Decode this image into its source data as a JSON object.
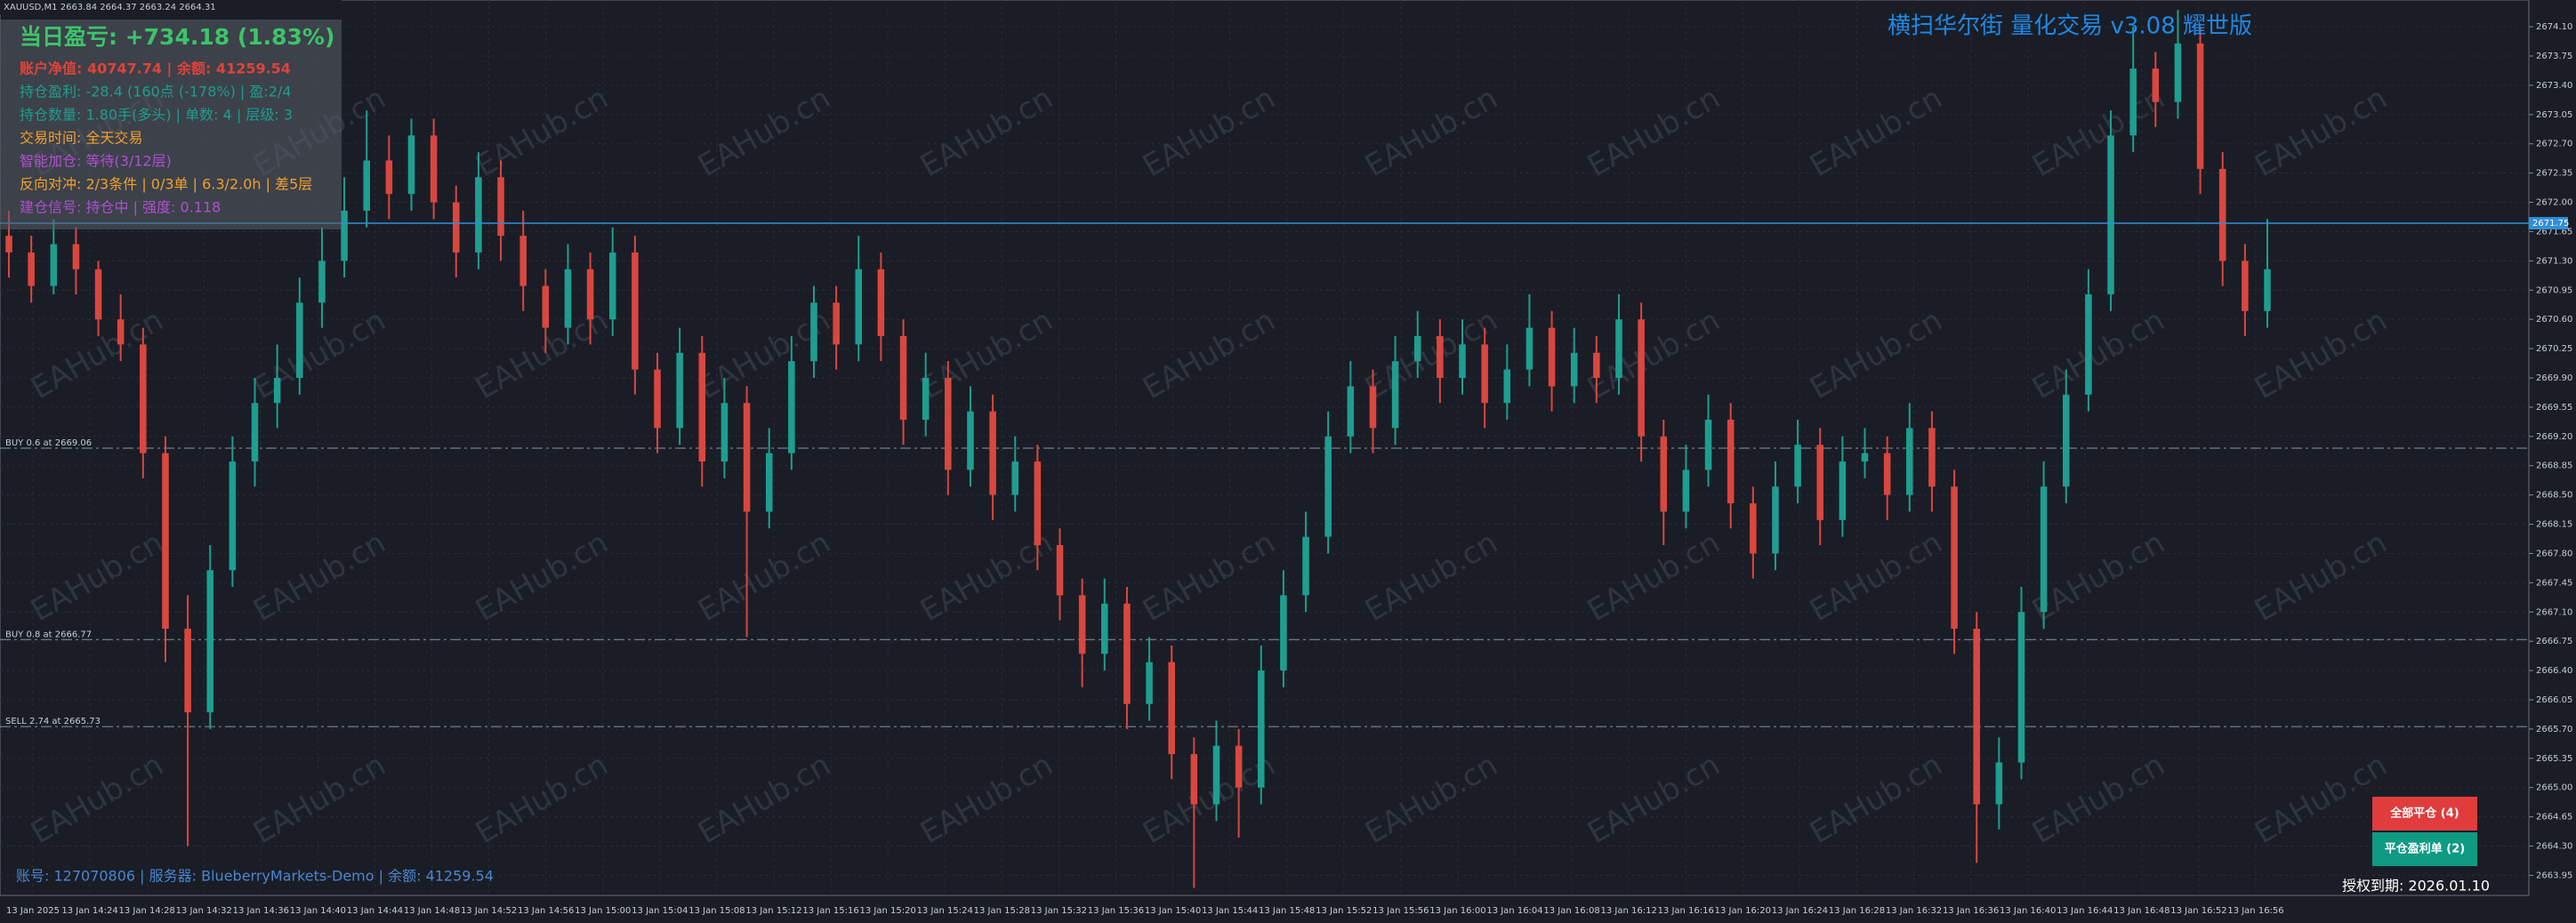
{
  "chart_data": {
    "type": "candlestick",
    "symbol_info": "XAUUSD,M1  2663.84 2664.37 2663.24 2664.31",
    "title": "横扫华尔街 量化交易 v3.08 耀世版",
    "watermark": "EAHub.cn",
    "up_color": "#1f9e8f",
    "down_color": "#d9473f",
    "grid": true,
    "ylim": [
      2663.71,
      2674.42
    ],
    "yticks": [
      {
        "value": 2663.95,
        "label": "2663.95"
      },
      {
        "value": 2664.3,
        "label": "2664.30"
      },
      {
        "value": 2664.65,
        "label": "2664.65"
      },
      {
        "value": 2665,
        "label": "2665.00"
      },
      {
        "value": 2665.35,
        "label": "2665.35"
      },
      {
        "value": 2665.7,
        "label": "2665.70"
      },
      {
        "value": 2666.05,
        "label": "2666.05"
      },
      {
        "value": 2666.4,
        "label": "2666.40"
      },
      {
        "value": 2666.75,
        "label": "2666.75"
      },
      {
        "value": 2667.1,
        "label": "2667.10"
      },
      {
        "value": 2667.45,
        "label": "2667.45"
      },
      {
        "value": 2667.8,
        "label": "2667.80"
      },
      {
        "value": 2668.15,
        "label": "2668.15"
      },
      {
        "value": 2668.5,
        "label": "2668.50"
      },
      {
        "value": 2668.85,
        "label": "2668.85"
      },
      {
        "value": 2669.2,
        "label": "2669.20"
      },
      {
        "value": 2669.55,
        "label": "2669.55"
      },
      {
        "value": 2669.9,
        "label": "2669.90"
      },
      {
        "value": 2670.25,
        "label": "2670.25"
      },
      {
        "value": 2670.6,
        "label": "2670.60"
      },
      {
        "value": 2670.95,
        "label": "2670.95"
      },
      {
        "value": 2671.3,
        "label": "2671.30"
      },
      {
        "value": 2671.65,
        "label": "2671.65"
      },
      {
        "value": 2672,
        "label": "2672.00"
      },
      {
        "value": 2672.35,
        "label": "2672.35"
      },
      {
        "value": 2672.7,
        "label": "2672.70"
      },
      {
        "value": 2673.05,
        "label": "2673.05"
      },
      {
        "value": 2673.4,
        "label": "2673.40"
      },
      {
        "value": 2673.75,
        "label": "2673.75"
      },
      {
        "value": 2674.1,
        "label": "2674.10"
      }
    ],
    "current_price": 2671.75,
    "levels": [
      {
        "label": "BUY 0.6 at 2669.06",
        "value": 2669.06
      },
      {
        "label": "BUY 0.8 at 2666.77",
        "value": 2666.77
      },
      {
        "label": "SELL 2.74 at 2665.73",
        "value": 2665.73
      }
    ],
    "x_labels": [
      "13 Jan 2025",
      "13 Jan 14:24",
      "13 Jan 14:28",
      "13 Jan 14:32",
      "13 Jan 14:36",
      "13 Jan 14:40",
      "13 Jan 14:44",
      "13 Jan 14:48",
      "13 Jan 14:52",
      "13 Jan 14:56",
      "13 Jan 15:00",
      "13 Jan 15:04",
      "13 Jan 15:08",
      "13 Jan 15:12",
      "13 Jan 15:16",
      "13 Jan 15:20",
      "13 Jan 15:24",
      "13 Jan 15:28",
      "13 Jan 15:32",
      "13 Jan 15:36",
      "13 Jan 15:40",
      "13 Jan 15:44",
      "13 Jan 15:48",
      "13 Jan 15:52",
      "13 Jan 15:56",
      "13 Jan 16:00",
      "13 Jan 16:04",
      "13 Jan 16:08",
      "13 Jan 16:12",
      "13 Jan 16:16",
      "13 Jan 16:20",
      "13 Jan 16:24",
      "13 Jan 16:28",
      "13 Jan 16:32",
      "13 Jan 16:36",
      "13 Jan 16:40",
      "13 Jan 16:44",
      "13 Jan 16:48",
      "13 Jan 16:52",
      "13 Jan 16:56"
    ],
    "candles": [
      [
        2671.6,
        2671.9,
        2671.1,
        2671.4
      ],
      [
        2671.4,
        2671.6,
        2670.8,
        2671.0
      ],
      [
        2671.0,
        2671.8,
        2670.9,
        2671.5
      ],
      [
        2671.5,
        2671.7,
        2670.9,
        2671.2
      ],
      [
        2671.2,
        2671.3,
        2670.4,
        2670.6
      ],
      [
        2670.6,
        2670.9,
        2670.1,
        2670.3
      ],
      [
        2670.3,
        2670.5,
        2668.7,
        2669.0
      ],
      [
        2669.0,
        2669.2,
        2666.5,
        2666.9
      ],
      [
        2666.9,
        2667.3,
        2664.3,
        2665.9
      ],
      [
        2665.9,
        2667.9,
        2665.7,
        2667.6
      ],
      [
        2667.6,
        2669.2,
        2667.4,
        2668.9
      ],
      [
        2668.9,
        2669.9,
        2668.6,
        2669.6
      ],
      [
        2669.6,
        2670.3,
        2669.3,
        2669.9
      ],
      [
        2669.9,
        2671.1,
        2669.7,
        2670.8
      ],
      [
        2670.8,
        2671.7,
        2670.5,
        2671.3
      ],
      [
        2671.3,
        2672.3,
        2671.1,
        2671.9
      ],
      [
        2671.9,
        2673.1,
        2671.7,
        2672.5
      ],
      [
        2672.5,
        2672.8,
        2671.8,
        2672.1
      ],
      [
        2672.1,
        2673.0,
        2671.9,
        2672.8
      ],
      [
        2672.8,
        2673.0,
        2671.8,
        2672.0
      ],
      [
        2672.0,
        2672.2,
        2671.1,
        2671.4
      ],
      [
        2671.4,
        2672.6,
        2671.2,
        2672.3
      ],
      [
        2672.3,
        2672.5,
        2671.3,
        2671.6
      ],
      [
        2671.6,
        2671.9,
        2670.7,
        2671.0
      ],
      [
        2671.0,
        2671.2,
        2670.2,
        2670.5
      ],
      [
        2670.5,
        2671.5,
        2670.3,
        2671.2
      ],
      [
        2671.2,
        2671.4,
        2670.3,
        2670.6
      ],
      [
        2670.6,
        2671.7,
        2670.4,
        2671.4
      ],
      [
        2671.4,
        2671.6,
        2669.7,
        2670.0
      ],
      [
        2670.0,
        2670.2,
        2669.0,
        2669.3
      ],
      [
        2669.3,
        2670.5,
        2669.1,
        2670.2
      ],
      [
        2670.2,
        2670.4,
        2668.6,
        2668.9
      ],
      [
        2668.9,
        2669.9,
        2668.7,
        2669.6
      ],
      [
        2669.6,
        2669.8,
        2666.8,
        2668.3
      ],
      [
        2668.3,
        2669.3,
        2668.1,
        2669.0
      ],
      [
        2669.0,
        2670.4,
        2668.8,
        2670.1
      ],
      [
        2670.1,
        2671.0,
        2669.9,
        2670.8
      ],
      [
        2670.8,
        2671.0,
        2670.0,
        2670.3
      ],
      [
        2670.3,
        2671.6,
        2670.1,
        2671.2
      ],
      [
        2671.2,
        2671.4,
        2670.1,
        2670.4
      ],
      [
        2670.4,
        2670.6,
        2669.1,
        2669.4
      ],
      [
        2669.4,
        2670.2,
        2669.2,
        2669.9
      ],
      [
        2669.9,
        2670.1,
        2668.5,
        2668.8
      ],
      [
        2668.8,
        2669.8,
        2668.6,
        2669.5
      ],
      [
        2669.5,
        2669.7,
        2668.2,
        2668.5
      ],
      [
        2668.5,
        2669.2,
        2668.3,
        2668.9
      ],
      [
        2668.9,
        2669.1,
        2667.6,
        2667.9
      ],
      [
        2667.9,
        2668.1,
        2667.0,
        2667.3
      ],
      [
        2667.3,
        2667.5,
        2666.2,
        2666.6
      ],
      [
        2666.6,
        2667.5,
        2666.4,
        2667.2
      ],
      [
        2667.2,
        2667.4,
        2665.7,
        2666.0
      ],
      [
        2666.0,
        2666.8,
        2665.8,
        2666.5
      ],
      [
        2666.5,
        2666.7,
        2665.1,
        2665.4
      ],
      [
        2665.4,
        2665.6,
        2663.8,
        2664.8
      ],
      [
        2664.8,
        2665.8,
        2664.6,
        2665.5
      ],
      [
        2665.5,
        2665.7,
        2664.4,
        2665.0
      ],
      [
        2665.0,
        2666.7,
        2664.8,
        2666.4
      ],
      [
        2666.4,
        2667.6,
        2666.2,
        2667.3
      ],
      [
        2667.3,
        2668.3,
        2667.1,
        2668.0
      ],
      [
        2668.0,
        2669.5,
        2667.8,
        2669.2
      ],
      [
        2669.2,
        2670.1,
        2669.0,
        2669.8
      ],
      [
        2669.8,
        2670.0,
        2669.0,
        2669.3
      ],
      [
        2669.3,
        2670.4,
        2669.1,
        2670.1
      ],
      [
        2670.1,
        2670.7,
        2669.9,
        2670.4
      ],
      [
        2670.4,
        2670.6,
        2669.6,
        2669.9
      ],
      [
        2669.9,
        2670.6,
        2669.7,
        2670.3
      ],
      [
        2670.3,
        2670.5,
        2669.3,
        2669.6
      ],
      [
        2669.6,
        2670.3,
        2669.4,
        2670.0
      ],
      [
        2670.0,
        2670.9,
        2669.8,
        2670.5
      ],
      [
        2670.5,
        2670.7,
        2669.5,
        2669.8
      ],
      [
        2669.8,
        2670.5,
        2669.6,
        2670.2
      ],
      [
        2670.2,
        2670.4,
        2669.6,
        2669.9
      ],
      [
        2669.9,
        2670.9,
        2669.7,
        2670.6
      ],
      [
        2670.6,
        2670.8,
        2668.9,
        2669.2
      ],
      [
        2669.2,
        2669.4,
        2667.9,
        2668.3
      ],
      [
        2668.3,
        2669.1,
        2668.1,
        2668.8
      ],
      [
        2668.8,
        2669.7,
        2668.6,
        2669.4
      ],
      [
        2669.4,
        2669.6,
        2668.1,
        2668.4
      ],
      [
        2668.4,
        2668.6,
        2667.5,
        2667.8
      ],
      [
        2667.8,
        2668.9,
        2667.6,
        2668.6
      ],
      [
        2668.6,
        2669.4,
        2668.4,
        2669.1
      ],
      [
        2669.1,
        2669.3,
        2667.9,
        2668.2
      ],
      [
        2668.2,
        2669.2,
        2668.0,
        2668.9
      ],
      [
        2668.9,
        2669.3,
        2668.7,
        2669.0
      ],
      [
        2669.0,
        2669.2,
        2668.2,
        2668.5
      ],
      [
        2668.5,
        2669.6,
        2668.3,
        2669.3
      ],
      [
        2669.3,
        2669.5,
        2668.3,
        2668.6
      ],
      [
        2668.6,
        2668.8,
        2666.6,
        2666.9
      ],
      [
        2666.9,
        2667.1,
        2664.1,
        2664.8
      ],
      [
        2664.8,
        2665.6,
        2664.5,
        2665.3
      ],
      [
        2665.3,
        2667.4,
        2665.1,
        2667.1
      ],
      [
        2667.1,
        2668.9,
        2666.9,
        2668.6
      ],
      [
        2668.6,
        2670.0,
        2668.4,
        2669.7
      ],
      [
        2669.7,
        2671.2,
        2669.5,
        2670.9
      ],
      [
        2670.9,
        2673.1,
        2670.7,
        2672.8
      ],
      [
        2672.8,
        2674.1,
        2672.6,
        2673.6
      ],
      [
        2673.6,
        2673.8,
        2672.9,
        2673.2
      ],
      [
        2673.2,
        2674.3,
        2673.0,
        2673.9
      ],
      [
        2673.9,
        2674.1,
        2672.1,
        2672.4
      ],
      [
        2672.4,
        2672.6,
        2671.0,
        2671.3
      ],
      [
        2671.3,
        2671.5,
        2670.4,
        2670.7
      ],
      [
        2670.7,
        2671.8,
        2670.5,
        2671.2
      ]
    ],
    "panel": [
      {
        "text": "当日盈亏: +734.18 (1.83%)",
        "color": "#3cc46a"
      },
      {
        "text": "账户净值: 40747.74 | 余额: 41259.54",
        "color": "#e0433a"
      },
      {
        "text": "持仓盈利: -28.4 (160点 (-178%) | 盈:2/4",
        "color": "#1e9e8e"
      },
      {
        "text": "持仓数量: 1.80手(多头) | 单数: 4 | 层级: 3",
        "color": "#1e9e8e"
      },
      {
        "text": "交易时间: 全天交易",
        "color": "#f0a030"
      },
      {
        "text": "智能加仓: 等待(3/12层)",
        "color": "#b04fd0"
      },
      {
        "text": "反向对冲: 2/3条件 | 0/3单 | 6.3/2.0h | 差5层",
        "color": "#f0a030"
      },
      {
        "text": "建仓信号: 持仓中 | 强度: 0.118",
        "color": "#b04fd0"
      }
    ],
    "account_info": "账号: 127070806 | 服务器: BlueberryMarkets-Demo | 余额: 41259.54",
    "buttons": [
      {
        "label": "全部平仓 (4)",
        "color": "#e03c3c"
      },
      {
        "label": "平仓盈利单 (2)",
        "color": "#0f9a84"
      }
    ],
    "expiry": "授权到期: 2026.01.10"
  }
}
